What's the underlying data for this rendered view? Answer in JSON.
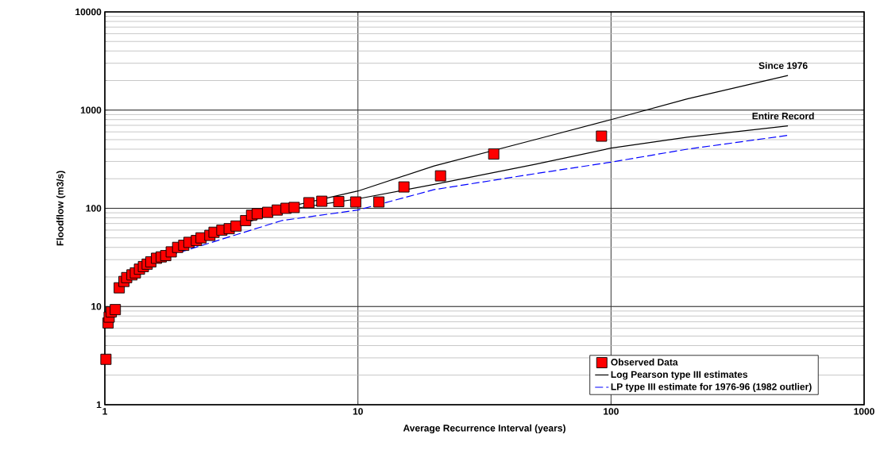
{
  "chart_data": {
    "type": "scatter",
    "xlabel": "Average Recurrence Interval (years)",
    "ylabel": "Floodflow (m3/s)",
    "log": "xy",
    "grid": true,
    "legend": "bottom right",
    "xlim": [
      1,
      1000
    ],
    "xticks": [
      1,
      10,
      100,
      1000
    ],
    "ylim": [
      1,
      10000
    ],
    "yticks": [
      1,
      10,
      100,
      1000,
      10000
    ],
    "annotations": [
      {
        "text": "Since 1976",
        "x": 500,
        "y": 2250
      },
      {
        "text": "Entire Record",
        "x": 500,
        "y": 690
      }
    ],
    "series": [
      {
        "name": "Observed Data",
        "marker": "square",
        "color": "#ff0000",
        "x": [
          1.01,
          1.03,
          1.04,
          1.06,
          1.1,
          1.14,
          1.19,
          1.22,
          1.28,
          1.32,
          1.37,
          1.42,
          1.47,
          1.52,
          1.6,
          1.67,
          1.74,
          1.83,
          1.94,
          2.05,
          2.15,
          2.3,
          2.4,
          2.6,
          2.7,
          2.9,
          3.1,
          3.3,
          3.6,
          3.8,
          4.0,
          4.4,
          4.8,
          5.2,
          5.6,
          6.4,
          7.2,
          8.4,
          9.8,
          12.1,
          15.2,
          21.2,
          34.4,
          91.7
        ],
        "values": [
          2.9,
          6.8,
          7.8,
          8.8,
          9.3,
          15.5,
          18,
          19.7,
          21,
          22,
          24,
          25.5,
          27,
          28.5,
          31,
          32,
          33,
          36,
          40,
          42,
          45,
          47,
          50,
          53,
          57,
          60,
          62,
          66,
          75,
          85,
          88,
          91,
          96,
          100,
          102,
          114,
          118,
          117,
          116,
          116,
          165,
          214,
          357,
          543
        ]
      },
      {
        "name": "Log Pearson type III estimates",
        "type": "line",
        "line_style": "solid",
        "marker": "none",
        "color": "#000000",
        "x": [
          2,
          5,
          10,
          20,
          50,
          100,
          200,
          500
        ],
        "values": [
          42,
          95,
          125,
          175,
          280,
          410,
          530,
          690
        ]
      },
      {
        "type": "line",
        "line_style": "solid",
        "marker": "none",
        "color": "#000000",
        "x": [
          2,
          5,
          10,
          20,
          50,
          100,
          200,
          500
        ],
        "values": [
          40,
          100,
          150,
          270,
          500,
          800,
          1300,
          2250
        ]
      },
      {
        "name": "LP type III estimate for 1976-96 (1982 outlier)",
        "type": "line",
        "line_style": "dashed",
        "marker": "none",
        "color": "#0000ff",
        "x": [
          1.8,
          2,
          5,
          10,
          20,
          50,
          100,
          200,
          500
        ],
        "values": [
          33,
          36,
          75,
          96,
          155,
          225,
          295,
          400,
          553
        ]
      }
    ]
  }
}
